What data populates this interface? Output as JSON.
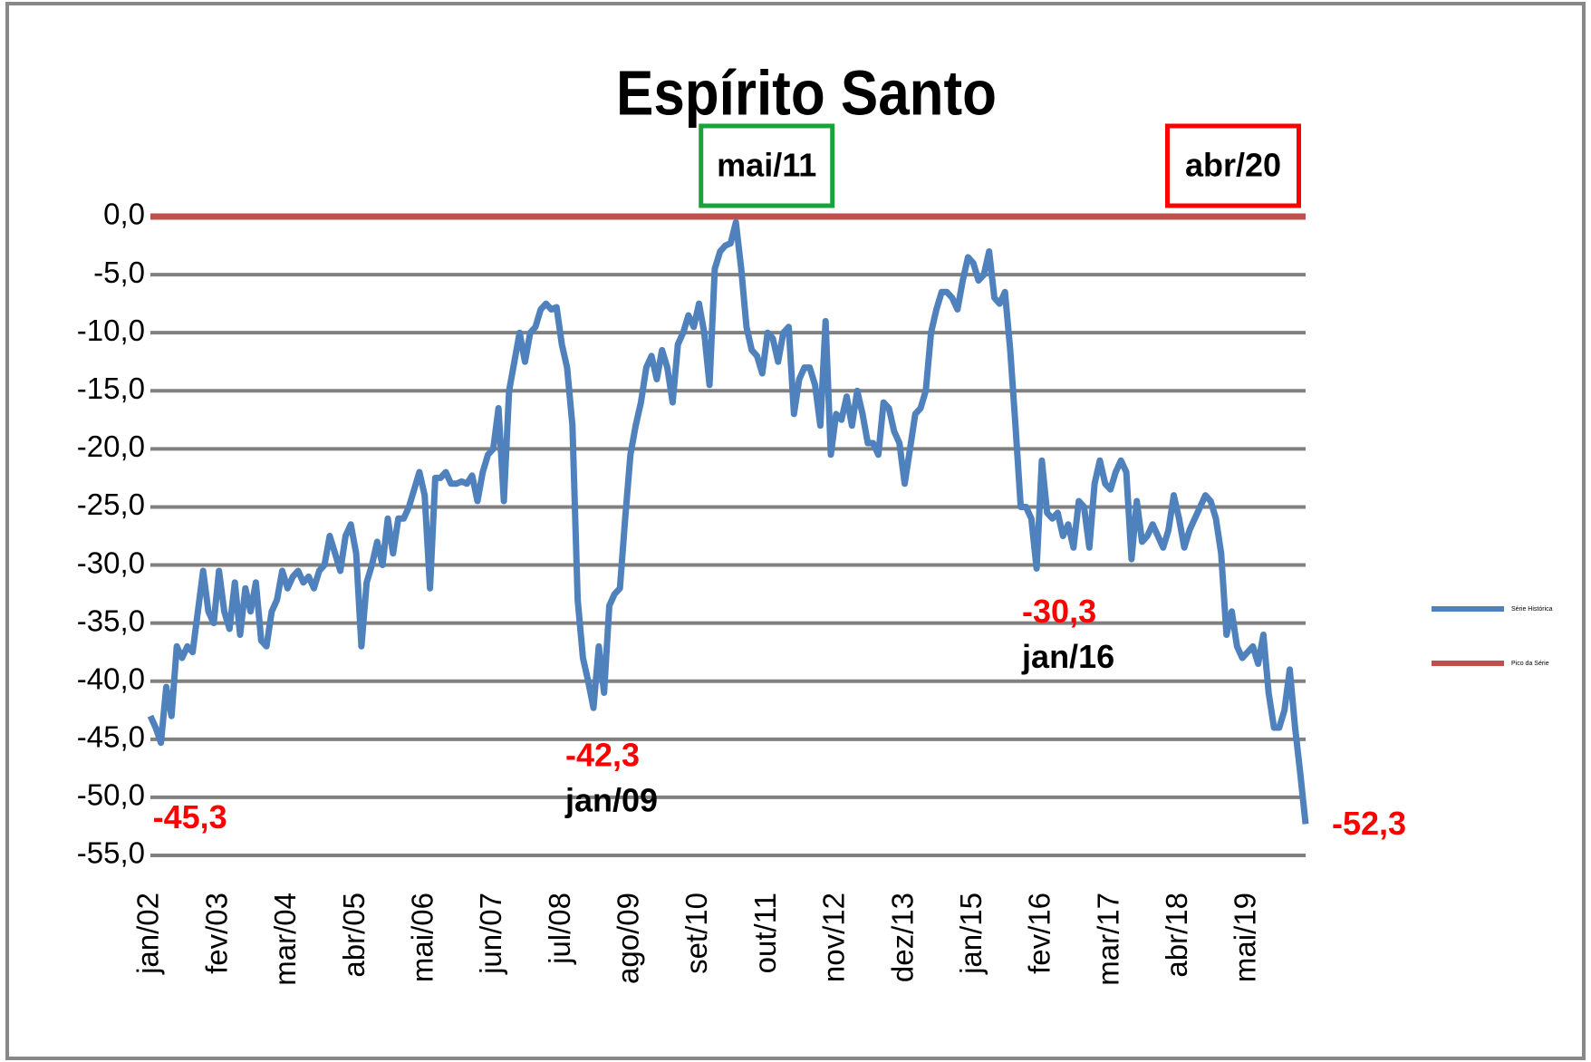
{
  "chart_data": {
    "type": "line",
    "title": "Espírito Santo",
    "categories": [
      "jan/02",
      null,
      null,
      null,
      null,
      null,
      null,
      null,
      null,
      null,
      null,
      null,
      null,
      "fev/03",
      null,
      null,
      null,
      null,
      null,
      null,
      null,
      null,
      null,
      null,
      null,
      null,
      "mar/04",
      null,
      null,
      null,
      null,
      null,
      null,
      null,
      null,
      null,
      null,
      null,
      null,
      "abr/05",
      null,
      null,
      null,
      null,
      null,
      null,
      null,
      null,
      null,
      null,
      null,
      null,
      "mai/06",
      null,
      null,
      null,
      null,
      null,
      null,
      null,
      null,
      null,
      null,
      null,
      null,
      "jun/07",
      null,
      null,
      null,
      null,
      null,
      null,
      null,
      null,
      null,
      null,
      null,
      null,
      "jul/08",
      null,
      null,
      null,
      null,
      null,
      null,
      null,
      null,
      null,
      null,
      null,
      null,
      "ago/09",
      null,
      null,
      null,
      null,
      null,
      null,
      null,
      null,
      null,
      null,
      null,
      null,
      "set/10",
      null,
      null,
      null,
      null,
      null,
      null,
      null,
      null,
      null,
      null,
      null,
      null,
      "out/11",
      null,
      null,
      null,
      null,
      null,
      null,
      null,
      null,
      null,
      null,
      null,
      null,
      "nov/12",
      null,
      null,
      null,
      null,
      null,
      null,
      null,
      null,
      null,
      null,
      null,
      null,
      "dez/13",
      null,
      null,
      null,
      null,
      null,
      null,
      null,
      null,
      null,
      null,
      null,
      null,
      "jan/15",
      null,
      null,
      null,
      null,
      null,
      null,
      null,
      null,
      null,
      null,
      null,
      null,
      "fev/16",
      null,
      null,
      null,
      null,
      null,
      null,
      null,
      null,
      null,
      null,
      null,
      null,
      "mar/17",
      null,
      null,
      null,
      null,
      null,
      null,
      null,
      null,
      null,
      null,
      null,
      null,
      "abr/18",
      null,
      null,
      null,
      null,
      null,
      null,
      null,
      null,
      null,
      null,
      null,
      null,
      "mai/19",
      null,
      null,
      null,
      null,
      null,
      null,
      null,
      null,
      null,
      null,
      null
    ],
    "series": [
      {
        "name": "Série Histórica",
        "color": "#4f81bd",
        "values": [
          -43,
          -44,
          -45.3,
          -40.5,
          -43,
          -37,
          -38,
          -37,
          -37.5,
          -34,
          -30.5,
          -34,
          -35,
          -30.5,
          -34,
          -35.5,
          -31.5,
          -36,
          -32,
          -34,
          -31.5,
          -36.5,
          -37,
          -34,
          -33,
          -30.5,
          -32,
          -31,
          -30.5,
          -31.5,
          -31,
          -32,
          -30.5,
          -30,
          -27.5,
          -29,
          -30.5,
          -27.5,
          -26.5,
          -29,
          -37,
          -31.5,
          -30,
          -28,
          -30,
          -26,
          -29,
          -26,
          -26,
          -25,
          -23.5,
          -22,
          -24,
          -32,
          -22.5,
          -22.5,
          -22,
          -23,
          -23,
          -22.8,
          -23,
          -22.3,
          -24.5,
          -22,
          -20.5,
          -20,
          -16.5,
          -24.5,
          -15,
          -12.5,
          -10,
          -12.5,
          -10,
          -9.5,
          -8,
          -7.5,
          -8,
          -7.8,
          -11,
          -13,
          -18,
          -33,
          -38,
          -40,
          -42.3,
          -37,
          -41,
          -33.5,
          -32.5,
          -32,
          -26,
          -20.5,
          -18,
          -16,
          -13,
          -12,
          -14,
          -11.5,
          -13,
          -16,
          -11,
          -10,
          -8.5,
          -9.5,
          -7.5,
          -10,
          -14.5,
          -4.5,
          -3,
          -2.5,
          -2.3,
          -0.5,
          -4.5,
          -9.5,
          -11.5,
          -12,
          -13.5,
          -10,
          -10.5,
          -12.5,
          -10,
          -9.5,
          -17,
          -14,
          -13,
          -13,
          -14.5,
          -18,
          -9,
          -20.5,
          -17,
          -17.5,
          -15.5,
          -18,
          -15,
          -17,
          -19.5,
          -19.5,
          -20.5,
          -16,
          -16.5,
          -18.5,
          -19.5,
          -23,
          -20,
          -17,
          -16.5,
          -15,
          -10,
          -8,
          -6.5,
          -6.5,
          -7,
          -8,
          -5.5,
          -3.5,
          -4,
          -5.5,
          -5,
          -3,
          -7,
          -7.5,
          -6.5,
          -11.5,
          -18,
          -25,
          -25,
          -26,
          -30.3,
          -21,
          -25.5,
          -26,
          -25.5,
          -27.5,
          -26.5,
          -28.5,
          -24.5,
          -25,
          -28.5,
          -23,
          -21,
          -23,
          -23.5,
          -22,
          -21,
          -22,
          -29.5,
          -24.5,
          -28,
          -27.5,
          -26.5,
          -27.5,
          -28.5,
          -27,
          -24,
          -26,
          -28.5,
          -27,
          -26,
          -25,
          -24,
          -24.5,
          -26,
          -29,
          -36,
          -34,
          -37,
          -38,
          -37.5,
          -37,
          -38.5,
          -36,
          -41,
          -44,
          -44,
          -42.5,
          -39,
          -44,
          -48,
          -52.3
        ]
      },
      {
        "name": "Pico da Série",
        "color": "#c0504d",
        "values": [
          0,
          0,
          0,
          0,
          0,
          0,
          0,
          0,
          0,
          0,
          0,
          0,
          0,
          0,
          0,
          0,
          0,
          0,
          0,
          0,
          0,
          0,
          0,
          0,
          0,
          0,
          0,
          0,
          0,
          0,
          0,
          0,
          0,
          0,
          0,
          0,
          0,
          0,
          0,
          0,
          0,
          0,
          0,
          0,
          0,
          0,
          0,
          0,
          0,
          0,
          0,
          0,
          0,
          0,
          0,
          0,
          0,
          0,
          0,
          0,
          0,
          0,
          0,
          0,
          0,
          0,
          0,
          0,
          0,
          0,
          0,
          0,
          0,
          0,
          0,
          0,
          0,
          0,
          0,
          0,
          0,
          0,
          0,
          0,
          0,
          0,
          0,
          0,
          0,
          0,
          0,
          0,
          0,
          0,
          0,
          0,
          0,
          0,
          0,
          0,
          0,
          0,
          0,
          0,
          0,
          0,
          0,
          0,
          0,
          0,
          0,
          0,
          0,
          0,
          0,
          0,
          0,
          0,
          0,
          0,
          0,
          0,
          0,
          0,
          0,
          0,
          0,
          0,
          0,
          0,
          0,
          0,
          0,
          0,
          0,
          0,
          0,
          0,
          0,
          0,
          0,
          0,
          0,
          0,
          0,
          0,
          0,
          0,
          0,
          0,
          0,
          0,
          0,
          0,
          0,
          0,
          0,
          0,
          0,
          0,
          0,
          0,
          0,
          0,
          0,
          0,
          0,
          0,
          0,
          0,
          0,
          0,
          0,
          0,
          0,
          0,
          0,
          0,
          0,
          0,
          0,
          0,
          0,
          0,
          0,
          0,
          0,
          0,
          0,
          0,
          0,
          0,
          0,
          0,
          0,
          0,
          0,
          0,
          0,
          0,
          0,
          0,
          0,
          0,
          0,
          0,
          0,
          0,
          0,
          0,
          0,
          0,
          0,
          0,
          0,
          0,
          0,
          0,
          0,
          0
        ]
      }
    ],
    "ylim": [
      -55,
      0
    ],
    "yticks": [
      {
        "value": 0,
        "label": "0,0"
      },
      {
        "value": -5,
        "label": "-5,0"
      },
      {
        "value": -10,
        "label": "-10,0"
      },
      {
        "value": -15,
        "label": "-15,0"
      },
      {
        "value": -20,
        "label": "-20,0"
      },
      {
        "value": -25,
        "label": "-25,0"
      },
      {
        "value": -30,
        "label": "-30,0"
      },
      {
        "value": -35,
        "label": "-35,0"
      },
      {
        "value": -40,
        "label": "-40,0"
      },
      {
        "value": -45,
        "label": "-45,0"
      },
      {
        "value": -50,
        "label": "-50,0"
      },
      {
        "value": -55,
        "label": "-55,0"
      }
    ],
    "grid": true,
    "grid_color": "#808080",
    "legend": "right",
    "annotations": [
      {
        "value_label": "-45,3",
        "color": "#ff0000"
      },
      {
        "value_label": "-42,3",
        "label": "jan/09",
        "color": "#ff0000"
      },
      {
        "value_label": "-30,3",
        "label": "jan/16",
        "color": "#ff0000"
      },
      {
        "value_label": "-52,3",
        "color": "#ff0000"
      }
    ],
    "boxes": [
      {
        "label": "mai/11",
        "color": "#1aa33a"
      },
      {
        "label": "abr/20",
        "color": "#ff0000"
      }
    ]
  }
}
